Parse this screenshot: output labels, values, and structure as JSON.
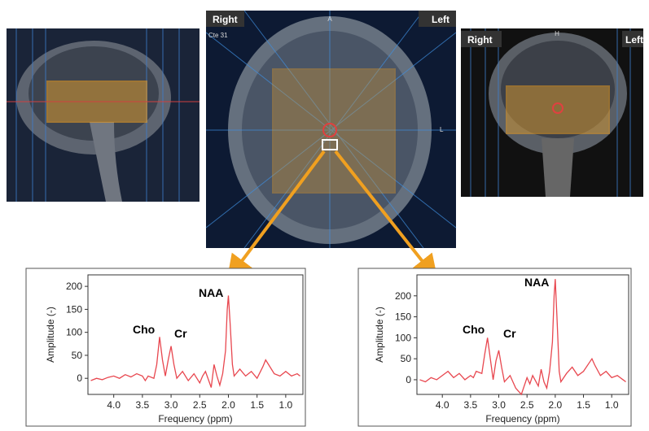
{
  "images": {
    "axial": {
      "corner_left": "Right",
      "corner_right": "Left",
      "top_marker": "A",
      "side_marker": "L",
      "info": "Cte 31"
    },
    "coronal": {
      "corner_left": "Right",
      "corner_right": "Left",
      "top_marker": "H"
    }
  },
  "chart_data": [
    {
      "type": "line",
      "xlabel": "Frequency (ppm)",
      "ylabel": "Amplitude (-)",
      "xlim": [
        4.45,
        0.7
      ],
      "ylim": [
        -35,
        225
      ],
      "xticks": [
        {
          "value": 4,
          "label": "4.0"
        },
        {
          "value": 3.5,
          "label": "3.5"
        },
        {
          "value": 3,
          "label": "3.0"
        },
        {
          "value": 2.5,
          "label": "2.5"
        },
        {
          "value": 2,
          "label": "2.0"
        },
        {
          "value": 1.5,
          "label": "1.5"
        },
        {
          "value": 1,
          "label": "1.0"
        }
      ],
      "yticks": [
        0,
        50,
        100,
        150,
        200
      ],
      "annotations": [
        "NAA",
        "Cho",
        "Cr"
      ],
      "x": [
        4.4,
        4.3,
        4.2,
        4.1,
        4.0,
        3.9,
        3.8,
        3.7,
        3.6,
        3.5,
        3.45,
        3.4,
        3.3,
        3.25,
        3.2,
        3.15,
        3.1,
        3.05,
        3.0,
        2.95,
        2.9,
        2.8,
        2.7,
        2.6,
        2.5,
        2.45,
        2.4,
        2.3,
        2.25,
        2.2,
        2.15,
        2.1,
        2.05,
        2.02,
        2.0,
        1.97,
        1.93,
        1.9,
        1.8,
        1.7,
        1.6,
        1.5,
        1.4,
        1.35,
        1.3,
        1.2,
        1.1,
        1.0,
        0.9,
        0.8,
        0.75
      ],
      "series": [
        {
          "color": "#e8474f",
          "values": [
            -5,
            0,
            -3,
            2,
            5,
            0,
            8,
            3,
            10,
            5,
            -5,
            5,
            0,
            30,
            90,
            40,
            5,
            40,
            70,
            30,
            0,
            15,
            -5,
            10,
            -10,
            5,
            15,
            -20,
            30,
            5,
            -15,
            10,
            60,
            150,
            180,
            120,
            30,
            5,
            20,
            5,
            15,
            0,
            25,
            40,
            30,
            10,
            5,
            15,
            5,
            10,
            5
          ]
        }
      ]
    },
    {
      "type": "line",
      "xlabel": "Frequency (ppm)",
      "ylabel": "Amplitude (-)",
      "xlim": [
        4.45,
        0.7
      ],
      "ylim": [
        -35,
        250
      ],
      "xticks": [
        {
          "value": 4,
          "label": "4.0"
        },
        {
          "value": 3.5,
          "label": "3.5"
        },
        {
          "value": 3,
          "label": "3.0"
        },
        {
          "value": 2.5,
          "label": "2.5"
        },
        {
          "value": 2,
          "label": "2.0"
        },
        {
          "value": 1.5,
          "label": "1.5"
        },
        {
          "value": 1,
          "label": "1.0"
        }
      ],
      "yticks": [
        0,
        50,
        100,
        150,
        200
      ],
      "annotations": [
        "NAA",
        "Cho",
        "Cr"
      ],
      "x": [
        4.4,
        4.3,
        4.2,
        4.1,
        4.0,
        3.9,
        3.8,
        3.7,
        3.6,
        3.5,
        3.45,
        3.4,
        3.3,
        3.25,
        3.2,
        3.15,
        3.1,
        3.05,
        3.0,
        2.95,
        2.9,
        2.8,
        2.7,
        2.6,
        2.5,
        2.45,
        2.4,
        2.3,
        2.25,
        2.2,
        2.15,
        2.1,
        2.05,
        2.02,
        2.0,
        1.97,
        1.93,
        1.9,
        1.8,
        1.7,
        1.6,
        1.5,
        1.4,
        1.35,
        1.3,
        1.2,
        1.1,
        1.0,
        0.9,
        0.8,
        0.75
      ],
      "series": [
        {
          "color": "#e8474f",
          "values": [
            0,
            -5,
            5,
            0,
            10,
            20,
            5,
            15,
            0,
            10,
            5,
            20,
            15,
            60,
            100,
            50,
            0,
            45,
            70,
            30,
            -5,
            10,
            -20,
            -35,
            5,
            -10,
            10,
            -15,
            25,
            -5,
            -20,
            20,
            90,
            200,
            240,
            150,
            20,
            -5,
            15,
            30,
            10,
            20,
            40,
            50,
            35,
            10,
            20,
            5,
            10,
            0,
            -5
          ]
        }
      ]
    }
  ]
}
